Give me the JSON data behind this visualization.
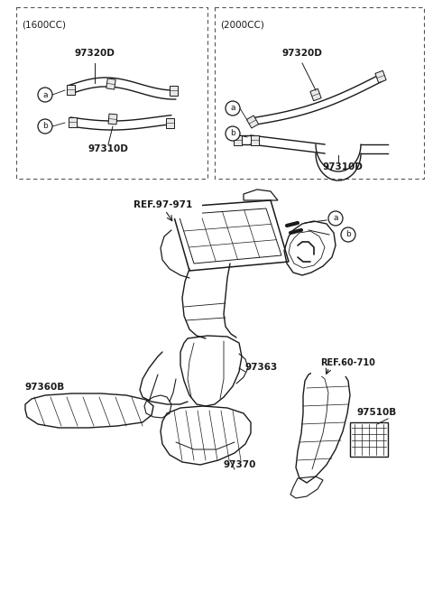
{
  "bg_color": "#ffffff",
  "line_color": "#1a1a1a",
  "fig_width": 4.8,
  "fig_height": 6.56,
  "dpi": 100,
  "box1_label": "(1600CC)",
  "box2_label": "(2000CC)",
  "box1_parts": [
    "97320D",
    "97310D"
  ],
  "box2_parts": [
    "97320D",
    "97310D"
  ],
  "main_parts": [
    "REF.97-971",
    "97360B",
    "97363",
    "97370",
    "REF.60-710",
    "97510B"
  ]
}
